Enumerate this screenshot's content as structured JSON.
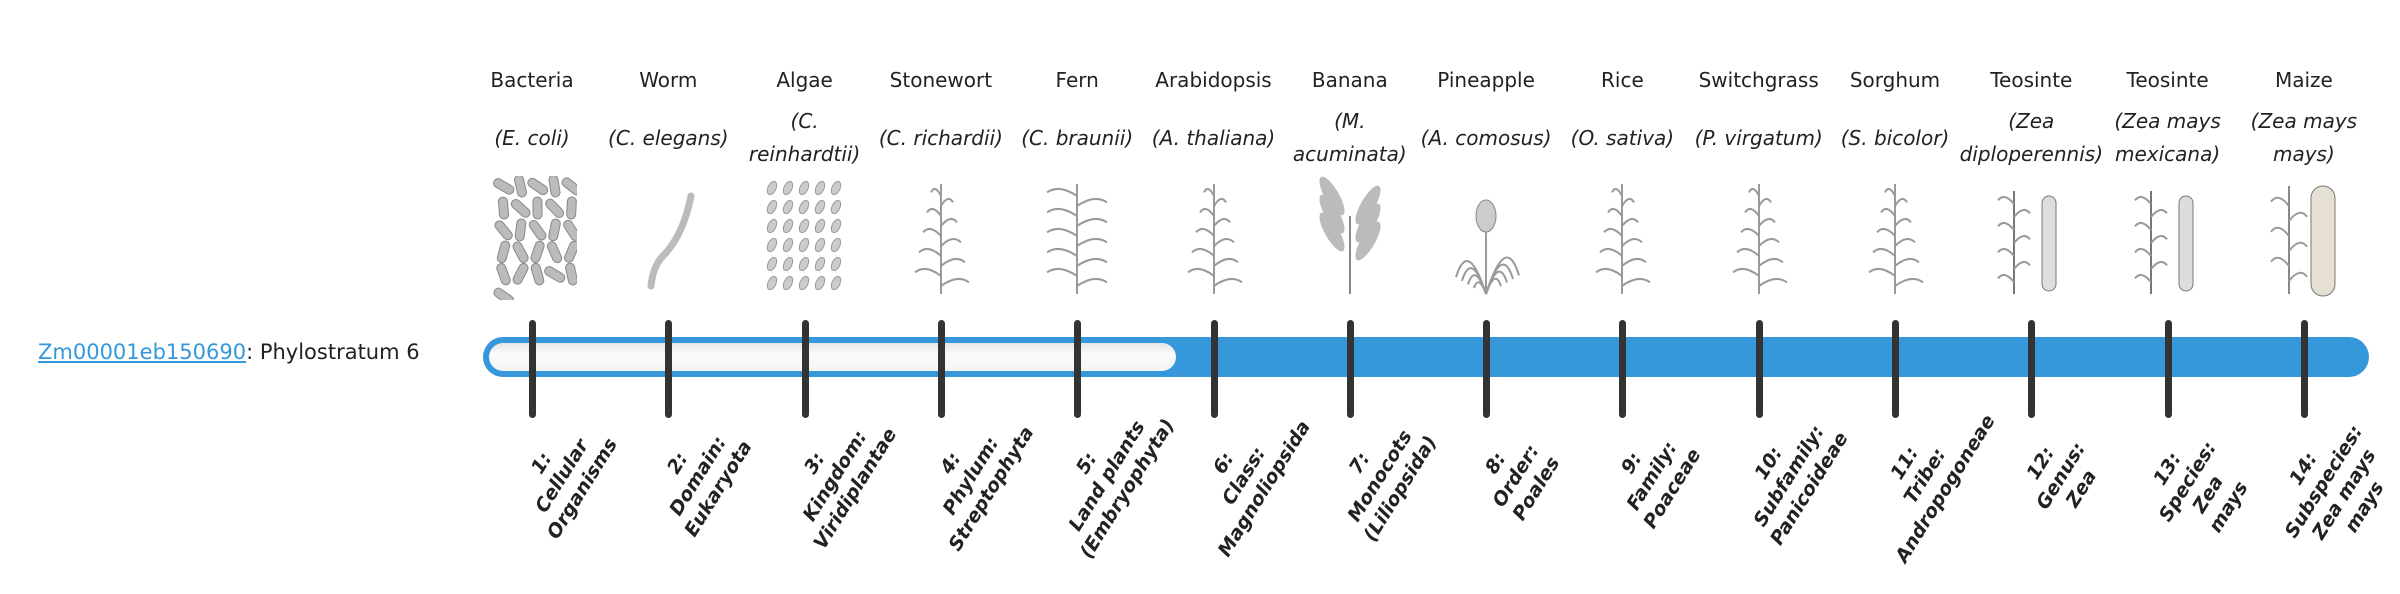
{
  "gene": {
    "id": "Zm00001eb150690",
    "separator": ":",
    "text": " Phylostratum 6"
  },
  "phylostratum": 6,
  "total_strata": 14,
  "colors": {
    "bar": "#3797db",
    "tick": "#333333",
    "link": "#3498db",
    "empty": "#f4f4f4"
  },
  "organisms": [
    {
      "common": "Bacteria",
      "scientific": "(E. coli)",
      "icon": "bacteria-icon"
    },
    {
      "common": "Worm",
      "scientific": "(C. elegans)",
      "icon": "worm-icon"
    },
    {
      "common": "Algae",
      "scientific": "(C. reinhardtii)",
      "icon": "algae-icon"
    },
    {
      "common": "Stonewort",
      "scientific": "(C. richardii)",
      "icon": "stonewort-icon"
    },
    {
      "common": "Fern",
      "scientific": "(C. braunii)",
      "icon": "fern-icon"
    },
    {
      "common": "Arabidopsis",
      "scientific": "(A. thaliana)",
      "icon": "arabidopsis-icon"
    },
    {
      "common": "Banana",
      "scientific": "(M. acuminata)",
      "icon": "banana-icon"
    },
    {
      "common": "Pineapple",
      "scientific": "(A. comosus)",
      "icon": "pineapple-icon"
    },
    {
      "common": "Rice",
      "scientific": "(O. sativa)",
      "icon": "rice-icon"
    },
    {
      "common": "Switchgrass",
      "scientific": "(P. virgatum)",
      "icon": "switchgrass-icon"
    },
    {
      "common": "Sorghum",
      "scientific": "(S. bicolor)",
      "icon": "sorghum-icon"
    },
    {
      "common": "Teosinte",
      "scientific": "(Zea diploperennis)",
      "icon": "teosinte-icon"
    },
    {
      "common": "Teosinte",
      "scientific": "(Zea mays mexicana)",
      "icon": "teosinte-icon"
    },
    {
      "common": "Maize",
      "scientific": "(Zea mays mays)",
      "icon": "maize-icon"
    }
  ],
  "strata": [
    [
      "1:",
      "Cellular",
      "Organisms"
    ],
    [
      "2:",
      "Domain:",
      "Eukaryota"
    ],
    [
      "3:",
      "Kingdom:",
      "Viridiplantae"
    ],
    [
      "4:",
      "Phylum:",
      "Streptophyta"
    ],
    [
      "5:",
      "Land plants",
      "(Embryophyta)"
    ],
    [
      "6:",
      "Class:",
      "Magnoliopsida"
    ],
    [
      "7:",
      "Monocots",
      "(Liliopsida)"
    ],
    [
      "8:",
      "Order:",
      "Poales"
    ],
    [
      "9:",
      "Family:",
      "Poaceae"
    ],
    [
      "10:",
      "Subfamily:",
      "Panicoideae"
    ],
    [
      "11:",
      "Tribe:",
      "Andropogoneae"
    ],
    [
      "12:",
      "Genus:",
      "Zea"
    ],
    [
      "13:",
      "Species:",
      "Zea",
      "mays"
    ],
    [
      "14:",
      "Subspecies:",
      "Zea mays",
      "mays"
    ]
  ]
}
